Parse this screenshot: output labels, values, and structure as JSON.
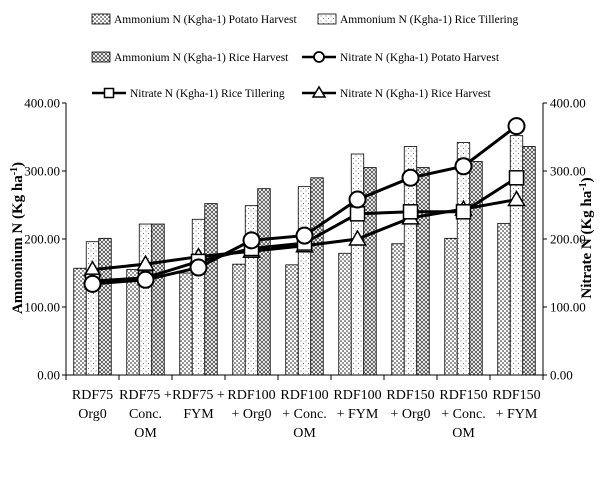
{
  "chart_data": {
    "type": "bar",
    "categories": [
      [
        "RDF75",
        "Org0"
      ],
      [
        "RDF75 +",
        "Conc.",
        "OM"
      ],
      [
        "RDF75 +",
        "FYM"
      ],
      [
        "RDF100",
        "+ Org0"
      ],
      [
        "RDF100",
        "+ Conc.",
        "OM"
      ],
      [
        "RDF100",
        "+ FYM"
      ],
      [
        "RDF150",
        "+ Org0"
      ],
      [
        "RDF150",
        "+ Conc.",
        "OM"
      ],
      [
        "RDF150",
        "+ FYM"
      ]
    ],
    "category_joiner": "+",
    "y_left": {
      "label": "Ammonium N (Kg ha",
      "label_sup": "-1",
      "label_tail": ")",
      "range": [
        0,
        400
      ],
      "ticks": [
        "0.00",
        "100.00",
        "200.00",
        "300.00",
        "400.00"
      ]
    },
    "y_right": {
      "label": "Nitrate N (Kg ha",
      "label_sup": "-1",
      "label_tail": ")",
      "range": [
        0,
        400
      ],
      "ticks": [
        "0.00",
        "100.00",
        "200.00",
        "300.00",
        "400.00"
      ]
    },
    "bar_series": [
      {
        "name": "Ammonium N (Kgha-1) Potato Harvest",
        "pattern": "dots",
        "values": [
          157,
          155,
          150,
          163,
          162,
          179,
          193,
          201,
          223
        ]
      },
      {
        "name": "Ammonium N (Kgha-1) Rice Tillering",
        "pattern": "lightdots",
        "values": [
          196,
          222,
          229,
          249,
          277,
          325,
          336,
          342,
          352
        ]
      },
      {
        "name": "Ammonium N (Kgha-1) Rice Harvest",
        "pattern": "crosshatch",
        "values": [
          201,
          222,
          252,
          274,
          290,
          305,
          305,
          314,
          336
        ]
      }
    ],
    "line_series": [
      {
        "name": "Nitrate N (Kgha-1) Potato Harvest",
        "marker": "circle",
        "values": [
          134,
          140,
          158,
          198,
          205,
          258,
          290,
          307,
          366
        ]
      },
      {
        "name": "Nitrate N (Kgha-1) Rice Tillering",
        "marker": "square",
        "values": [
          138,
          143,
          167,
          186,
          194,
          237,
          240,
          240,
          290
        ]
      },
      {
        "name": "Nitrate N (Kgha-1) Rice Harvest",
        "marker": "triangle",
        "values": [
          155,
          163,
          174,
          182,
          190,
          200,
          231,
          244,
          258
        ]
      }
    ],
    "grid": false,
    "legend_position": "top"
  }
}
